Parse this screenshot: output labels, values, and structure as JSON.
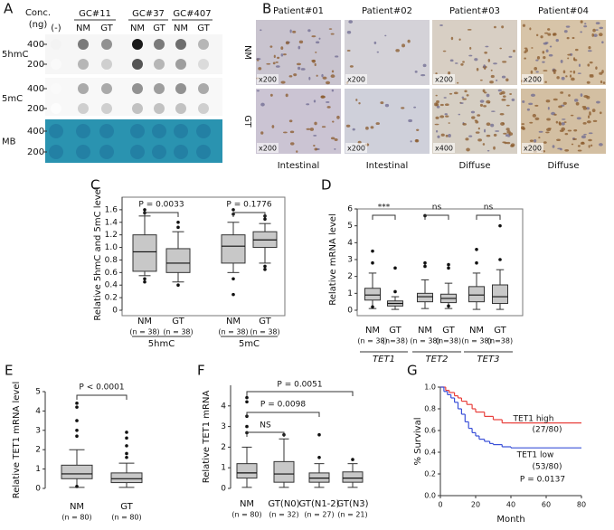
{
  "panel_a": {
    "label": "A",
    "conc_label": "Conc.",
    "conc_unit": "(ng)",
    "blank": "(-)",
    "samples": [
      "GC#11",
      "GC#37",
      "GC#407"
    ],
    "tissue": [
      "NM",
      "GT",
      "NM",
      "GT",
      "NM",
      "GT"
    ],
    "rows": [
      {
        "name": "5hmC",
        "amounts": [
          400,
          200
        ]
      },
      {
        "name": "5mC",
        "amounts": [
          400,
          200
        ]
      },
      {
        "name": "MB",
        "amounts": [
          400,
          200
        ]
      }
    ]
  },
  "panel_b": {
    "label": "B",
    "rows": [
      "NM",
      "GT"
    ],
    "patients": [
      {
        "name": "Patient#01",
        "type": "Intestinal",
        "magnification": [
          "x200",
          "x200"
        ]
      },
      {
        "name": "Patient#02",
        "type": "Intestinal",
        "magnification": [
          "x200",
          "x200"
        ]
      },
      {
        "name": "Patient#03",
        "type": "Diffuse",
        "magnification": [
          "x200",
          "x400"
        ]
      },
      {
        "name": "Patient#04",
        "type": "Diffuse",
        "magnification": [
          "x200",
          "x200"
        ]
      }
    ]
  },
  "chart_data": [
    {
      "type": "box",
      "panel_label": "C",
      "ylabel": "Relative 5hmC and 5mC level",
      "ylim": [
        0,
        1.8
      ],
      "yticks": [
        0,
        0.2,
        0.4,
        0.6,
        0.8,
        {
          "value": 1,
          "label": "1.0"
        },
        1.2,
        1.4,
        1.6
      ],
      "categories": [
        "NM",
        "GT",
        "NM",
        "GT"
      ],
      "n_labels": [
        "(n = 38)",
        "(n = 38)",
        "(n = 38)",
        "(n = 38)"
      ],
      "group_labels": [
        "5hmC",
        "5mC"
      ],
      "boxes": [
        {
          "whislo": 0.55,
          "q1": 0.62,
          "med": 0.93,
          "q3": 1.2,
          "whishi": 1.5,
          "fliers": [
            1.6,
            1.55,
            0.5,
            0.45
          ]
        },
        {
          "whislo": 0.45,
          "q1": 0.6,
          "med": 0.75,
          "q3": 0.98,
          "whishi": 1.25,
          "fliers": [
            1.4,
            1.32,
            0.4
          ]
        },
        {
          "whislo": 0.6,
          "q1": 0.75,
          "med": 1.02,
          "q3": 1.2,
          "whishi": 1.4,
          "fliers": [
            1.6,
            1.53,
            0.5,
            0.25
          ]
        },
        {
          "whislo": 0.75,
          "q1": 1.0,
          "med": 1.12,
          "q3": 1.25,
          "whishi": 1.38,
          "fliers": [
            1.5,
            1.45,
            0.7,
            0.65
          ]
        }
      ],
      "comparisons": [
        "P = 0.0033",
        "P = 0.1776"
      ]
    },
    {
      "type": "box",
      "panel_label": "D",
      "ylabel": "Relative mRNA level",
      "ylim": [
        0,
        6
      ],
      "yticks": [
        0,
        1,
        2,
        3,
        4,
        5,
        6
      ],
      "categories": [
        "NM",
        "GT",
        "NM",
        "GT",
        "NM",
        "GT"
      ],
      "n_labels": [
        "(n = 38)",
        "(n=38)",
        "(n = 38)",
        "(n=38)",
        "(n = 38)",
        "(n=38)"
      ],
      "group_labels": [
        "TET1",
        "TET2",
        "TET3"
      ],
      "boxes": [
        {
          "whislo": 0.1,
          "q1": 0.6,
          "med": 0.9,
          "q3": 1.3,
          "whishi": 2.2,
          "fliers": [
            3.5,
            2.8,
            0.2
          ]
        },
        {
          "whislo": 0.05,
          "q1": 0.25,
          "med": 0.4,
          "q3": 0.55,
          "whishi": 0.8,
          "fliers": [
            2.5,
            1.1
          ]
        },
        {
          "whislo": 0.1,
          "q1": 0.5,
          "med": 0.8,
          "q3": 1.0,
          "whishi": 1.8,
          "fliers": [
            5.6,
            2.8,
            2.6
          ]
        },
        {
          "whislo": 0.1,
          "q1": 0.45,
          "med": 0.7,
          "q3": 0.95,
          "whishi": 1.6,
          "fliers": [
            2.7,
            2.5,
            0.25
          ]
        },
        {
          "whislo": 0.05,
          "q1": 0.5,
          "med": 0.9,
          "q3": 1.4,
          "whishi": 2.2,
          "fliers": [
            3.6,
            2.8
          ]
        },
        {
          "whislo": 0.05,
          "q1": 0.4,
          "med": 0.8,
          "q3": 1.5,
          "whishi": 2.4,
          "fliers": [
            5.0,
            3.0
          ]
        }
      ],
      "comparisons": [
        "***",
        "ns",
        "ns"
      ]
    },
    {
      "type": "box",
      "panel_label": "E",
      "ylabel": "Relative TET1 mRNA level",
      "ylim": [
        0,
        5
      ],
      "yticks": [
        0,
        1,
        2,
        3,
        4,
        5
      ],
      "categories": [
        "NM",
        "GT"
      ],
      "n_labels": [
        "(n = 80)",
        "(n = 80)"
      ],
      "group_labels": [],
      "boxes": [
        {
          "whislo": 0.05,
          "q1": 0.5,
          "med": 0.75,
          "q3": 1.2,
          "whishi": 2.0,
          "fliers": [
            4.4,
            4.2,
            3.5,
            3.0,
            2.7,
            0.1
          ]
        },
        {
          "whislo": 0.05,
          "q1": 0.3,
          "med": 0.5,
          "q3": 0.8,
          "whishi": 1.3,
          "fliers": [
            2.9,
            2.6,
            2.2,
            1.8,
            1.6
          ]
        }
      ],
      "comparisons": [
        "P < 0.0001"
      ]
    },
    {
      "type": "box",
      "panel_label": "F",
      "ylabel": "Relative TET1 mRNA",
      "ylim": [
        0,
        5
      ],
      "yticks": [
        0,
        1,
        2,
        3,
        4
      ],
      "categories": [
        "NM",
        "GT(N0)",
        "GT(N1-2)",
        "GT(N3)"
      ],
      "n_labels": [
        "(n = 80)",
        "(n = 32)",
        "(n = 27)",
        "(n = 21)"
      ],
      "group_labels": [],
      "boxes": [
        {
          "whislo": 0.05,
          "q1": 0.5,
          "med": 0.75,
          "q3": 1.2,
          "whishi": 2.0,
          "fliers": [
            4.4,
            4.2,
            3.5,
            3.0,
            2.7
          ]
        },
        {
          "whislo": 0.05,
          "q1": 0.3,
          "med": 0.7,
          "q3": 1.3,
          "whishi": 2.4,
          "fliers": [
            2.6
          ]
        },
        {
          "whislo": 0.05,
          "q1": 0.3,
          "med": 0.5,
          "q3": 0.75,
          "whishi": 1.2,
          "fliers": [
            2.6,
            1.5
          ]
        },
        {
          "whislo": 0.05,
          "q1": 0.3,
          "med": 0.5,
          "q3": 0.8,
          "whishi": 1.2,
          "fliers": [
            1.4
          ]
        }
      ],
      "comparisons": [
        "NS",
        "P = 0.0098",
        "P = 0.0051"
      ]
    },
    {
      "type": "survival",
      "panel_label": "G",
      "ylabel": "% Survival",
      "xlabel": "Month",
      "xlim": [
        0,
        80
      ],
      "xticks": [
        0,
        20,
        40,
        60,
        80
      ],
      "ylim": [
        0,
        1
      ],
      "yticks": [
        {
          "value": 0,
          "label": "0.0"
        },
        0.2,
        0.4,
        0.6,
        0.8,
        {
          "value": 1,
          "label": "1.0"
        }
      ],
      "series": [
        {
          "name": "TET1 high",
          "count": "(27/80)",
          "color": "#e8403c",
          "x": [
            0,
            3,
            5,
            8,
            10,
            12,
            15,
            18,
            20,
            25,
            30,
            35,
            40
          ],
          "values": [
            1,
            0.97,
            0.95,
            0.92,
            0.9,
            0.87,
            0.84,
            0.8,
            0.77,
            0.73,
            0.7,
            0.67,
            0.67
          ]
        },
        {
          "name": "TET1 low",
          "count": "(53/80)",
          "color": "#3a50d8",
          "x": [
            0,
            2,
            4,
            6,
            8,
            10,
            12,
            14,
            16,
            18,
            20,
            22,
            25,
            28,
            30,
            35,
            40
          ],
          "values": [
            1,
            0.96,
            0.93,
            0.9,
            0.86,
            0.8,
            0.75,
            0.68,
            0.62,
            0.58,
            0.55,
            0.52,
            0.5,
            0.48,
            0.47,
            0.45,
            0.44
          ]
        }
      ],
      "annotation": "P = 0.0137"
    }
  ]
}
